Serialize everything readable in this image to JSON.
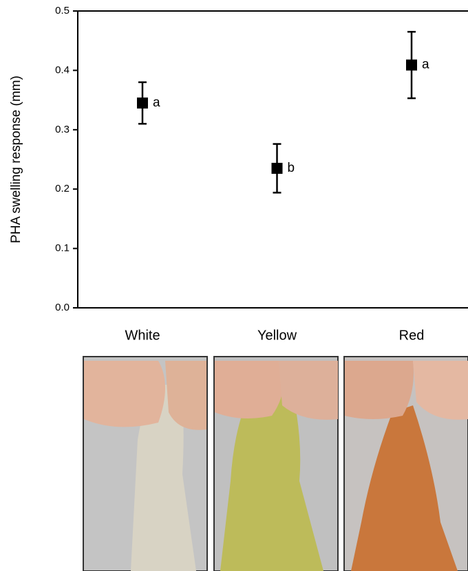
{
  "chart_data": {
    "type": "errorbar",
    "y_label": "PHA swelling response (mm)",
    "categories": [
      "White",
      "Yellow",
      "Red"
    ],
    "values": [
      0.345,
      0.235,
      0.409
    ],
    "errors": [
      0.035,
      0.041,
      0.056
    ],
    "annotations": [
      "a",
      "b",
      "a"
    ],
    "color": "#000000",
    "ylim": [
      0,
      0.5
    ],
    "yticks": [
      {
        "value": 0,
        "label": "0.0"
      },
      0.1,
      0.2,
      0.3,
      0.4,
      0.5
    ]
  }
}
